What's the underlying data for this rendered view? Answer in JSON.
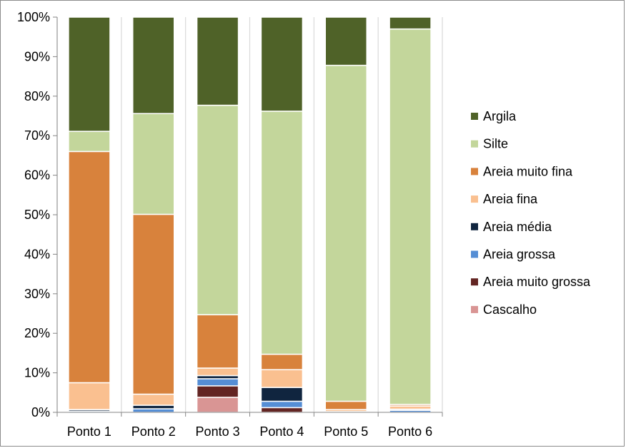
{
  "chart_data": {
    "type": "bar",
    "stacked": true,
    "normalized": true,
    "title": "",
    "xlabel": "",
    "ylabel": "",
    "ylim": [
      0,
      100
    ],
    "y_ticks": [
      0,
      10,
      20,
      30,
      40,
      50,
      60,
      70,
      80,
      90,
      100
    ],
    "y_tick_suffix": "%",
    "grid": false,
    "legend_position": "right",
    "categories": [
      "Ponto 1",
      "Ponto 2",
      "Ponto 3",
      "Ponto 4",
      "Ponto 5",
      "Ponto 6"
    ],
    "series": [
      {
        "name": "Cascalho",
        "color": "#d99594",
        "values": [
          0.0,
          0.0,
          3.8,
          0.0,
          0.0,
          0.0
        ]
      },
      {
        "name": "Areia muito grossa",
        "color": "#632523",
        "values": [
          0.0,
          0.0,
          2.9,
          1.2,
          0.0,
          0.0
        ]
      },
      {
        "name": "Areia grossa",
        "color": "#558ed5",
        "values": [
          0.3,
          0.9,
          1.8,
          1.6,
          0.0,
          0.5
        ]
      },
      {
        "name": "Areia média",
        "color": "#10253f",
        "values": [
          0.4,
          0.9,
          0.8,
          3.5,
          0.2,
          0.3
        ]
      },
      {
        "name": "Areia fina",
        "color": "#fac090",
        "values": [
          6.8,
          2.8,
          1.9,
          4.5,
          0.5,
          0.8
        ]
      },
      {
        "name": "Areia muito fina",
        "color": "#d8823c",
        "values": [
          58.5,
          45.5,
          13.5,
          3.9,
          2.1,
          0.4
        ]
      },
      {
        "name": "Silte",
        "color": "#c3d69b",
        "values": [
          5.1,
          25.5,
          53.0,
          61.5,
          85.0,
          95.0
        ]
      },
      {
        "name": "Argila",
        "color": "#4f6228",
        "values": [
          28.9,
          24.4,
          22.3,
          23.8,
          12.2,
          3.0
        ]
      }
    ]
  }
}
